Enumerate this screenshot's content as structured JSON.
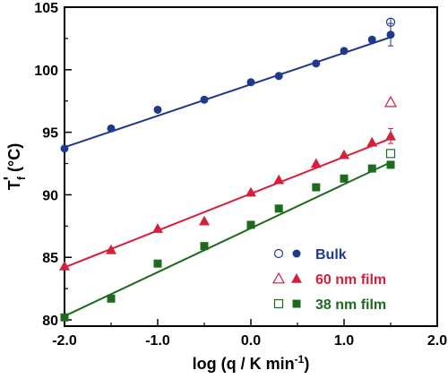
{
  "chart_data": {
    "type": "scatter",
    "xlabel": "log (q / K min",
    "xlabel_superscript": "-1",
    "xlabel_suffix": ")",
    "ylabel_main": "T",
    "ylabel_sub": "f",
    "ylabel_prime": "'",
    "ylabel_unit": " (°C)",
    "xlim": [
      -2.0,
      2.0
    ],
    "ylim": [
      79.5,
      105
    ],
    "x_ticks": [
      -2.0,
      -1.0,
      0.0,
      1.0,
      2.0
    ],
    "x_tick_labels": [
      "-2.0",
      "-1.0",
      "0.0",
      "1.0",
      "2.0"
    ],
    "y_ticks": [
      80,
      85,
      90,
      95,
      100,
      105
    ],
    "y_tick_labels": [
      "80",
      "85",
      "90",
      "95",
      "100",
      "105"
    ],
    "legend_position": "bottom-right",
    "series": [
      {
        "name": "Bulk",
        "color": "#1f3a8a",
        "marker": "circle",
        "x": [
          -2.0,
          -1.5,
          -1.0,
          -0.5,
          0.0,
          0.3,
          0.7,
          1.0,
          1.3,
          1.5
        ],
        "y": [
          93.7,
          95.3,
          96.8,
          97.6,
          99.0,
          99.5,
          100.5,
          101.5,
          102.4,
          102.8
        ],
        "error_bar_x": 1.5,
        "error_bar_y": 102.8,
        "error_bar_half": 0.9,
        "fit": {
          "x": [
            -2.0,
            1.5
          ],
          "y": [
            93.8,
            102.6
          ]
        },
        "open_marker": {
          "x": 1.5,
          "y": 103.8,
          "error_half": 0.35
        }
      },
      {
        "name": "60 nm film",
        "color": "#d61f3a",
        "marker": "triangle",
        "x": [
          -2.0,
          -1.5,
          -1.0,
          -0.5,
          0.0,
          0.3,
          0.7,
          1.0,
          1.3,
          1.5
        ],
        "y": [
          84.3,
          85.6,
          87.3,
          87.9,
          90.2,
          91.2,
          92.5,
          93.2,
          94.2,
          94.7
        ],
        "error_bar_x": 1.5,
        "error_bar_y": 94.7,
        "error_bar_half": 0.6,
        "fit": {
          "x": [
            -2.0,
            1.5
          ],
          "y": [
            84.2,
            94.5
          ]
        },
        "open_marker": {
          "x": 1.5,
          "y": 97.4,
          "error_half": 0
        }
      },
      {
        "name": "38 nm film",
        "color": "#1e6b1e",
        "marker": "square",
        "x": [
          -2.0,
          -1.5,
          -1.0,
          -0.5,
          0.0,
          0.3,
          0.7,
          1.0,
          1.3,
          1.5
        ],
        "y": [
          80.2,
          81.7,
          84.5,
          85.9,
          87.6,
          88.9,
          90.6,
          91.3,
          92.1,
          92.4
        ],
        "error_bar_x": 1.5,
        "error_bar_y": 92.4,
        "error_bar_half": 0,
        "fit": {
          "x": [
            -2.0,
            1.5
          ],
          "y": [
            80.3,
            92.6
          ]
        },
        "open_marker": {
          "x": 1.5,
          "y": 93.3,
          "error_half": 0
        }
      }
    ]
  }
}
